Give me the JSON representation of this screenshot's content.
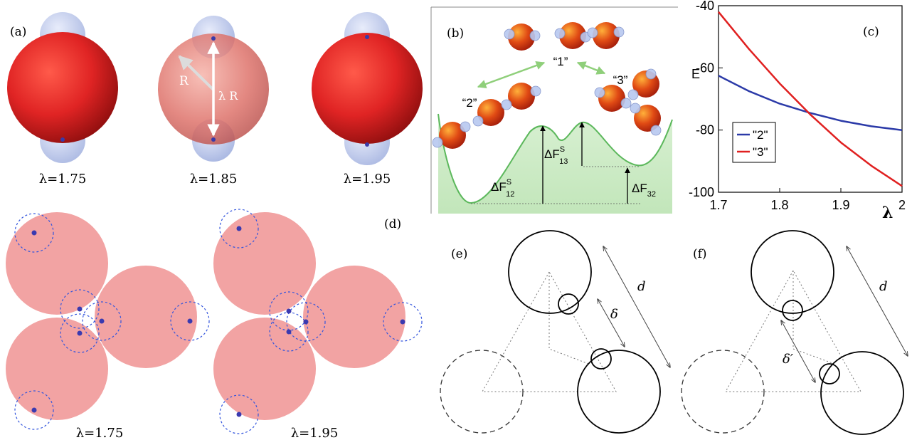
{
  "panel_a": {
    "label": "(a)",
    "radius_label": "R",
    "lambda_r_label": "λ R",
    "captions": [
      "λ=1.75",
      "λ=1.85",
      "λ=1.95"
    ]
  },
  "panel_b": {
    "label": "(b)",
    "state_1": "“1”",
    "state_2": "“2”",
    "state_3": "“3”",
    "df12_main": "ΔF",
    "df12_sup": "S",
    "df12_sub": "12",
    "df13_main": "ΔF",
    "df13_sup": "S",
    "df13_sub": "13",
    "df32_main": "ΔF",
    "df32_sub": "32"
  },
  "panel_d": {
    "label": "(d)",
    "captions": [
      "λ=1.75",
      "λ=1.95"
    ]
  },
  "panel_e": {
    "label": "(e)",
    "d_label": "d",
    "delta_label": "δ"
  },
  "panel_f": {
    "label": "(f)",
    "d_label": "d",
    "delta_label": "δ′"
  },
  "colors": {
    "sphere_red": "#e02424",
    "patch_blue": "#b8c4e8",
    "disk_pink": "#f2a3a3",
    "dashed_blue": "#3355dd",
    "landscape_green": "#6cc06c",
    "series_2": "#2b3aa8",
    "series_3": "#e02020"
  },
  "chart_data": {
    "type": "line",
    "label": "(c)",
    "xlabel": "λ",
    "ylabel": "E",
    "xlim": [
      1.7,
      2.0
    ],
    "ylim": [
      -100,
      -40
    ],
    "xticks": [
      "1.7",
      "1.8",
      "1.9",
      "2"
    ],
    "yticks": [
      "-40",
      "-60",
      "-80",
      "-100"
    ],
    "xtick_values": [
      1.7,
      1.8,
      1.9,
      2.0
    ],
    "ytick_values": [
      -40,
      -60,
      -80,
      -100
    ],
    "legend_position": "bottom-left",
    "series": [
      {
        "name": "\"2\"",
        "color": "#2b3aa8",
        "x": [
          1.7,
          1.75,
          1.8,
          1.85,
          1.9,
          1.95,
          2.0
        ],
        "y": [
          -62.5,
          -67.5,
          -71.5,
          -74.5,
          -77.0,
          -78.8,
          -80.0
        ]
      },
      {
        "name": "\"3\"",
        "color": "#e02020",
        "x": [
          1.7,
          1.75,
          1.8,
          1.85,
          1.9,
          1.95,
          2.0
        ],
        "y": [
          -42.0,
          -54.0,
          -65.0,
          -75.0,
          -84.0,
          -91.5,
          -98.0
        ]
      }
    ]
  }
}
